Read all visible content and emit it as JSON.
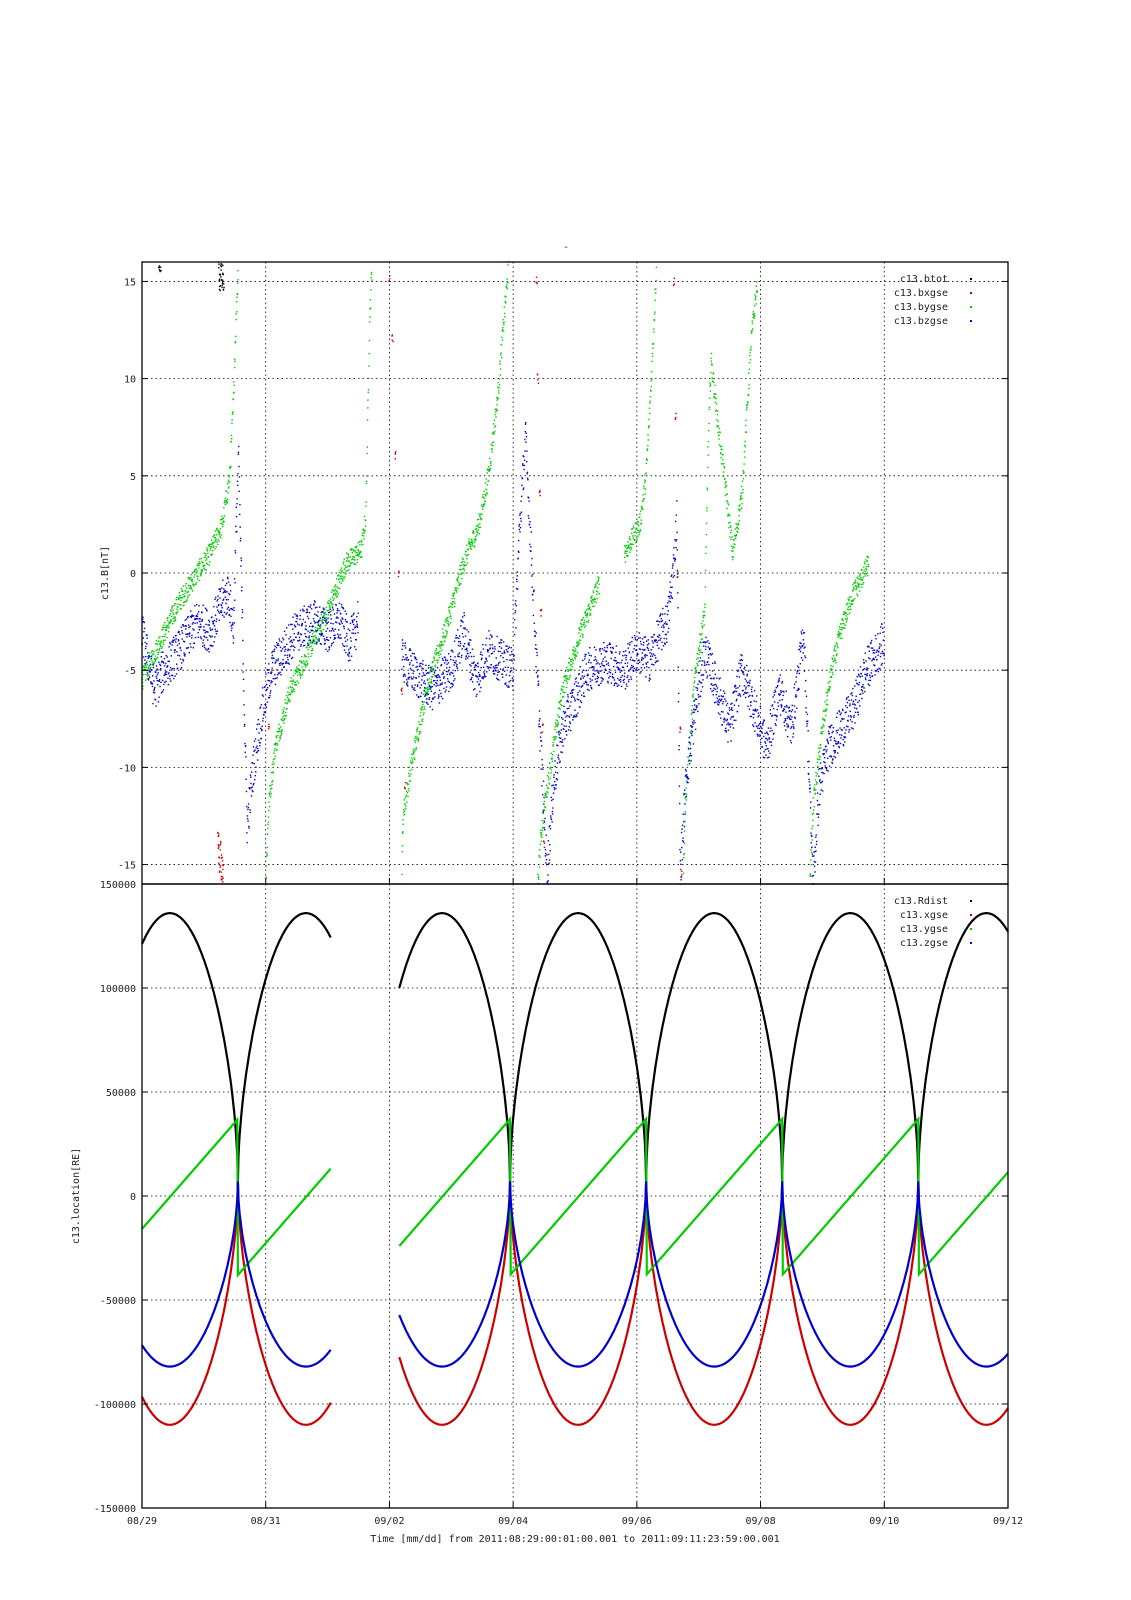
{
  "figure": {
    "top_mark": "-",
    "footer": "Time [mm/dd]  from 2011:08:29:00:01:00.001  to  2011:09:11:23:59:00.001"
  },
  "chart_data": [
    {
      "type": "scatter",
      "ylabel": "c13.B[nT]",
      "ylim": [
        -16,
        16
      ],
      "yticks": [
        15,
        10,
        5,
        0,
        -5,
        -10,
        -15
      ],
      "xlim_days": [
        0,
        14
      ],
      "grid": true,
      "legend_position": "top-right",
      "series": [
        {
          "name": "c13.btot",
          "color": "#000000",
          "points": [
            [
              1.24,
              15.8
            ],
            [
              1.25,
              15.2
            ],
            [
              1.26,
              14.6
            ],
            [
              1.27,
              15.4
            ],
            [
              1.28,
              15.9
            ],
            [
              1.29,
              14.9
            ],
            [
              1.3,
              15.1
            ],
            [
              1.31,
              15.6
            ],
            [
              1.32,
              14.7
            ],
            [
              0.28,
              15.7
            ],
            [
              0.3,
              15.5
            ]
          ]
        },
        {
          "name": "c13.bxgse",
          "color": "#cc0000",
          "points": [
            [
              1.23,
              -13.5
            ],
            [
              1.24,
              -14.2
            ],
            [
              1.25,
              -14.8
            ],
            [
              1.26,
              -15.3
            ],
            [
              1.27,
              -14.0
            ],
            [
              1.28,
              -15.6
            ],
            [
              1.29,
              -14.6
            ],
            [
              1.3,
              -15.8
            ],
            [
              1.31,
              -15.0
            ],
            [
              4.0,
              15.2
            ],
            [
              4.05,
              12.0
            ],
            [
              4.1,
              6.0
            ],
            [
              4.15,
              0.0
            ],
            [
              4.2,
              -6.0
            ],
            [
              4.25,
              -11.0
            ],
            [
              6.38,
              15.0
            ],
            [
              6.4,
              10.0
            ],
            [
              6.43,
              4.0
            ],
            [
              6.45,
              -2.0
            ],
            [
              6.48,
              -8.0
            ],
            [
              6.5,
              -14.0
            ],
            [
              8.6,
              15.0
            ],
            [
              8.63,
              8.0
            ],
            [
              8.66,
              0.0
            ],
            [
              8.7,
              -8.0
            ],
            [
              8.72,
              -15.5
            ],
            [
              2.05,
              -8.0
            ],
            [
              2.1,
              -5.0
            ]
          ]
        },
        {
          "name": "c13.bygse",
          "color": "#00cc00",
          "trend": [
            [
              0.0,
              -5.5
            ],
            [
              0.3,
              -3.5
            ],
            [
              0.6,
              -1.5
            ],
            [
              0.9,
              0.0
            ],
            [
              1.1,
              1.0
            ],
            [
              1.3,
              2.5
            ],
            [
              1.42,
              5.0
            ],
            [
              1.48,
              9.0
            ],
            [
              1.52,
              13.0
            ],
            [
              1.56,
              15.9
            ],
            [
              2.0,
              -16.0
            ],
            [
              2.05,
              -12.0
            ],
            [
              2.15,
              -9.0
            ],
            [
              2.4,
              -6.0
            ],
            [
              2.7,
              -4.0
            ],
            [
              3.0,
              -2.0
            ],
            [
              3.3,
              0.5
            ],
            [
              3.55,
              1.2
            ],
            [
              3.62,
              3.0
            ],
            [
              3.65,
              8.0
            ],
            [
              3.68,
              13.0
            ],
            [
              3.72,
              15.9
            ],
            [
              4.2,
              -16.0
            ],
            [
              4.22,
              -12.5
            ],
            [
              4.35,
              -10.0
            ],
            [
              4.6,
              -6.0
            ],
            [
              4.9,
              -3.0
            ],
            [
              5.2,
              0.5
            ],
            [
              5.45,
              2.5
            ],
            [
              5.6,
              5.0
            ],
            [
              5.75,
              9.0
            ],
            [
              5.85,
              13.0
            ],
            [
              5.93,
              15.9
            ],
            [
              6.4,
              -16.0
            ],
            [
              6.45,
              -13.5
            ],
            [
              6.55,
              -11.0
            ],
            [
              6.8,
              -6.0
            ],
            [
              7.1,
              -3.0
            ],
            [
              7.4,
              -0.5
            ],
            [
              7.8,
              1.0
            ],
            [
              8.05,
              2.5
            ],
            [
              8.15,
              5.0
            ],
            [
              8.22,
              9.0
            ],
            [
              8.28,
              13.0
            ],
            [
              8.32,
              15.9
            ],
            [
              8.75,
              -16.0
            ],
            [
              8.78,
              -12.0
            ],
            [
              8.85,
              -9.0
            ],
            [
              8.95,
              -5.0
            ],
            [
              9.1,
              -2.0
            ],
            [
              9.15,
              6.0
            ],
            [
              9.2,
              11.0
            ],
            [
              9.3,
              8.0
            ],
            [
              9.45,
              4.0
            ],
            [
              9.55,
              1.0
            ],
            [
              9.7,
              4.0
            ],
            [
              9.85,
              12.0
            ],
            [
              9.95,
              15.0
            ],
            [
              10.8,
              -16.0
            ],
            [
              10.85,
              -12.0
            ],
            [
              11.0,
              -8.0
            ],
            [
              11.15,
              -5.0
            ],
            [
              11.3,
              -3.0
            ],
            [
              11.5,
              -1.0
            ],
            [
              11.6,
              -0.5
            ],
            [
              11.75,
              0.5
            ]
          ]
        },
        {
          "name": "c13.bzgse",
          "color": "#0000cc",
          "trend": [
            [
              0.0,
              -3.0
            ],
            [
              0.2,
              -6.0
            ],
            [
              0.35,
              -5.0
            ],
            [
              0.6,
              -4.0
            ],
            [
              0.9,
              -2.5
            ],
            [
              1.1,
              -3.0
            ],
            [
              1.3,
              -1.5
            ],
            [
              1.4,
              -1.0
            ],
            [
              1.48,
              -3.0
            ],
            [
              1.52,
              2.0
            ],
            [
              1.56,
              6.0
            ],
            [
              1.7,
              -13.0
            ],
            [
              1.8,
              -10.0
            ],
            [
              1.95,
              -7.0
            ],
            [
              2.1,
              -5.0
            ],
            [
              2.3,
              -4.0
            ],
            [
              2.5,
              -3.0
            ],
            [
              2.8,
              -2.5
            ],
            [
              3.0,
              -3.0
            ],
            [
              3.2,
              -2.5
            ],
            [
              3.35,
              -3.5
            ],
            [
              3.45,
              -3.0
            ],
            [
              3.5,
              -2.0
            ],
            [
              4.2,
              -4.5
            ],
            [
              4.5,
              -5.5
            ],
            [
              4.7,
              -6.0
            ],
            [
              5.0,
              -5.0
            ],
            [
              5.2,
              -3.0
            ],
            [
              5.4,
              -5.5
            ],
            [
              5.6,
              -4.0
            ],
            [
              5.8,
              -4.5
            ],
            [
              6.0,
              -5.0
            ],
            [
              6.1,
              2.0
            ],
            [
              6.2,
              7.0
            ],
            [
              6.55,
              -15.5
            ],
            [
              6.65,
              -11.0
            ],
            [
              6.8,
              -8.0
            ],
            [
              7.0,
              -6.5
            ],
            [
              7.2,
              -5.0
            ],
            [
              7.5,
              -4.5
            ],
            [
              7.8,
              -5.0
            ],
            [
              8.0,
              -4.0
            ],
            [
              8.2,
              -4.5
            ],
            [
              8.4,
              -3.0
            ],
            [
              8.5,
              -2.5
            ],
            [
              8.6,
              0.5
            ],
            [
              8.65,
              3.0
            ],
            [
              8.7,
              -15.5
            ],
            [
              8.8,
              -10.5
            ],
            [
              8.95,
              -7.0
            ],
            [
              9.1,
              -4.0
            ],
            [
              9.3,
              -6.0
            ],
            [
              9.5,
              -8.0
            ],
            [
              9.7,
              -5.0
            ],
            [
              9.9,
              -7.0
            ],
            [
              10.1,
              -9.0
            ],
            [
              10.3,
              -6.0
            ],
            [
              10.5,
              -8.0
            ],
            [
              10.7,
              -3.0
            ],
            [
              10.85,
              -16.0
            ],
            [
              10.95,
              -11.0
            ],
            [
              11.1,
              -9.0
            ],
            [
              11.3,
              -8.0
            ],
            [
              11.5,
              -7.0
            ],
            [
              11.7,
              -5.0
            ],
            [
              11.9,
              -4.0
            ],
            [
              12.0,
              -3.5
            ]
          ]
        }
      ]
    },
    {
      "type": "line",
      "ylabel": "c13.location[RE]",
      "ylim": [
        -150000,
        150000
      ],
      "yticks": [
        150000,
        100000,
        50000,
        0,
        -50000,
        -100000,
        -150000
      ],
      "x_ticks": [
        "08/29",
        "08/31",
        "09/02",
        "09/04",
        "09/06",
        "09/08",
        "09/10",
        "09/12"
      ],
      "xlim_days": [
        0,
        14
      ],
      "grid": true,
      "legend_position": "top-right",
      "data_gap_days": [
        3.05,
        4.15
      ],
      "orbit_period_days": 2.2,
      "perigee_days": [
        1.55,
        3.75,
        5.95,
        8.15,
        10.35,
        12.55
      ],
      "series": [
        {
          "name": "c13.Rdist",
          "color": "#000000",
          "apogee": 136000,
          "perigee": 7000
        },
        {
          "name": "c13.xgse",
          "color": "#cc0000",
          "min": -110000,
          "max": 7000
        },
        {
          "name": "c13.ygse",
          "color": "#00cc00",
          "min": -38000,
          "max": 37000
        },
        {
          "name": "c13.zgse",
          "color": "#0000cc",
          "min": -82000,
          "max": 7000
        }
      ]
    }
  ]
}
